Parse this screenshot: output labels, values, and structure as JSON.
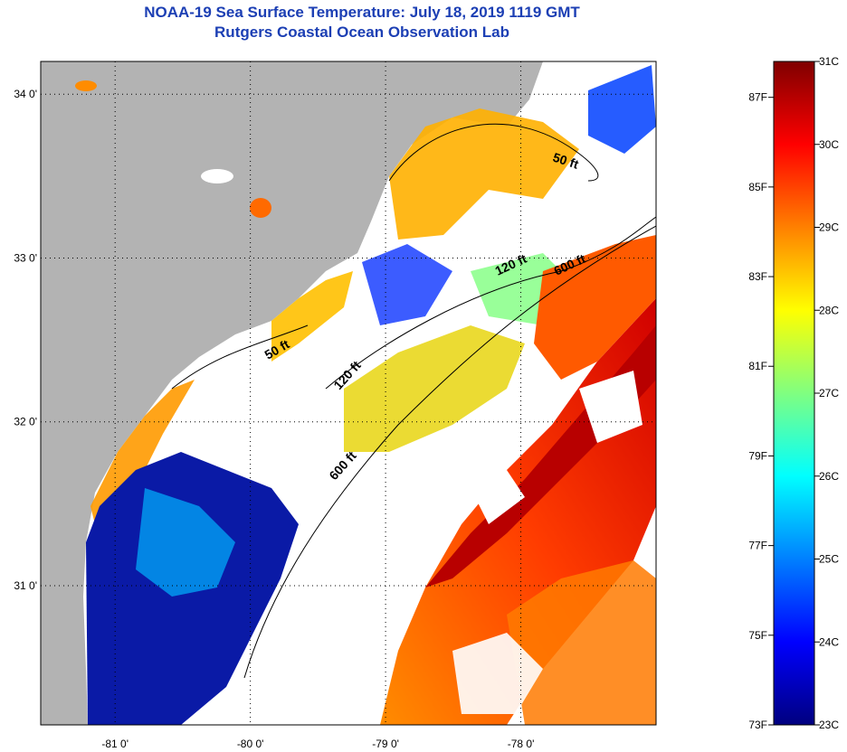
{
  "title": "NOAA-19 Sea Surface Temperature:  July 18, 2019 1119 GMT",
  "subtitle": "Rutgers Coastal Ocean Observation Lab",
  "map": {
    "lon_ticks": [
      {
        "value": -81,
        "label": "-81 0'"
      },
      {
        "value": -80,
        "label": "-80 0'"
      },
      {
        "value": -79,
        "label": "-79 0'"
      },
      {
        "value": -78,
        "label": "-78 0'"
      }
    ],
    "lat_ticks": [
      {
        "value": 34,
        "label": "34 0'"
      },
      {
        "value": 33,
        "label": "33 0'"
      },
      {
        "value": 32,
        "label": "32 0'"
      },
      {
        "value": 31,
        "label": "31 0'"
      }
    ],
    "lon_range": [
      -81.55,
      -77.0
    ],
    "lat_range": [
      30.15,
      34.2
    ],
    "isobaths": [
      {
        "label": "50 ft",
        "depth": 50
      },
      {
        "label": "50 ft",
        "depth": 50
      },
      {
        "label": "120 ft",
        "depth": 120
      },
      {
        "label": "120 ft",
        "depth": 120
      },
      {
        "label": "600 ft",
        "depth": 600
      },
      {
        "label": "600 ft",
        "depth": 600
      }
    ],
    "colors": {
      "land": "#b3b3b3",
      "cloud": "#ffffff",
      "coast": "#000000"
    }
  },
  "colorbar": {
    "celsius_labels": [
      "31C",
      "30C",
      "29C",
      "28C",
      "27C",
      "26C",
      "25C",
      "24C",
      "23C"
    ],
    "fahrenheit_labels": [
      "87F",
      "85F",
      "83F",
      "81F",
      "79F",
      "77F",
      "75F",
      "73F"
    ],
    "range_c": [
      23,
      31
    ],
    "range_f": [
      73,
      87.8
    ],
    "colormap": [
      "#00007f",
      "#0000ff",
      "#0080ff",
      "#00ffff",
      "#80ff80",
      "#ffff00",
      "#ff8000",
      "#ff0000",
      "#7f0000"
    ]
  }
}
